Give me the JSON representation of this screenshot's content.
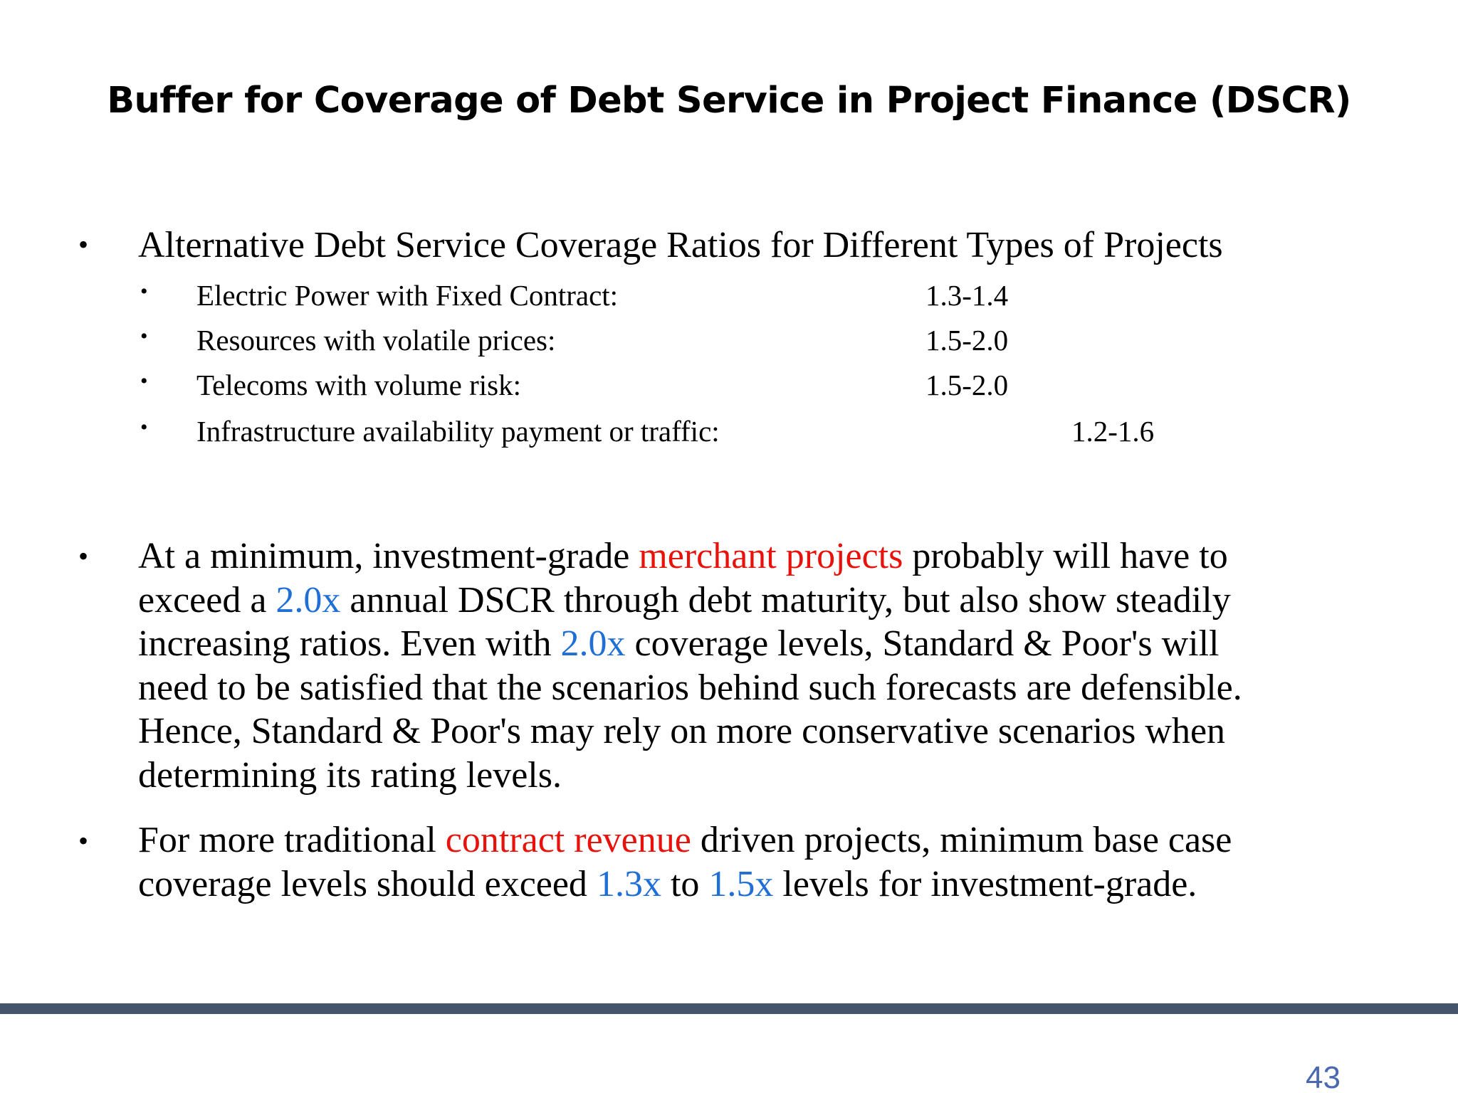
{
  "slide": {
    "title": "Buffer for Coverage of Debt Service in Project Finance (DSCR)",
    "bullet_char": "•",
    "main_bullet": "Alternative Debt Service Coverage Ratios for Different Types of Projects",
    "sub_items": [
      {
        "label": "Electric Power with Fixed Contract:",
        "value": "1.3-1.4"
      },
      {
        "label": "Resources with volatile prices:",
        "value": "1.5-2.0"
      },
      {
        "label": "Telecoms with volume risk:",
        "value": "1.5-2.0"
      },
      {
        "label": "Infrastructure availability payment or traffic:",
        "value": "1.2-1.6"
      }
    ],
    "paragraph1": {
      "l1_a": "At a minimum, investment-grade ",
      "l1_red": "merchant projects",
      "l1_b": " probably will have to",
      "l2_a": "exceed a ",
      "l2_blue": "2.0x",
      "l2_b": " annual DSCR through debt maturity, but also show steadily",
      "l3_a": "increasing ratios. Even with ",
      "l3_blue": "2.0x",
      "l3_b": " coverage levels, Standard & Poor's will",
      "l4": "need to be satisfied that the scenarios behind such forecasts are defensible.",
      "l5": "Hence, Standard & Poor's may rely on more conservative scenarios when",
      "l6": "determining its rating levels."
    },
    "paragraph2": {
      "l1_a": "For more traditional ",
      "l1_red": "contract revenue",
      "l1_b": " driven projects, minimum base case",
      "l2_a": "coverage levels should exceed ",
      "l2_blue1": "1.3x",
      "l2_mid": " to ",
      "l2_blue2": "1.5x",
      "l2_b": " levels for investment-grade."
    },
    "page_number": "43",
    "colors": {
      "highlight_red": "#e8120c",
      "highlight_blue": "#1f6fd6",
      "footer_rule": "#44546a",
      "page_number": "#4a69b0"
    }
  }
}
